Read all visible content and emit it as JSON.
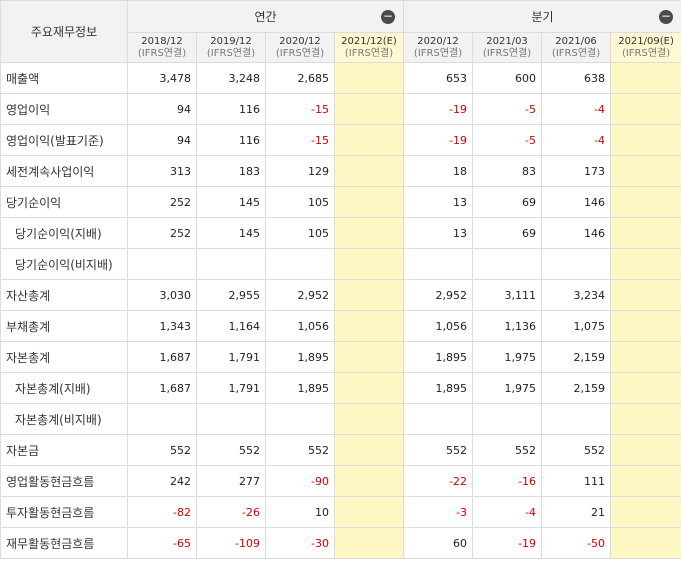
{
  "header": {
    "corner": "주요재무정보",
    "groups": [
      {
        "label": "연간",
        "collapse": "−"
      },
      {
        "label": "분기",
        "collapse": "−"
      }
    ],
    "periods": [
      {
        "period": "2018/12",
        "basis": "(IFRS연결)",
        "estimate": false
      },
      {
        "period": "2019/12",
        "basis": "(IFRS연결)",
        "estimate": false
      },
      {
        "period": "2020/12",
        "basis": "(IFRS연결)",
        "estimate": false
      },
      {
        "period": "2021/12(E)",
        "basis": "(IFRS연결)",
        "estimate": true
      },
      {
        "period": "2020/12",
        "basis": "(IFRS연결)",
        "estimate": false
      },
      {
        "period": "2021/03",
        "basis": "(IFRS연결)",
        "estimate": false
      },
      {
        "period": "2021/06",
        "basis": "(IFRS연결)",
        "estimate": false
      },
      {
        "period": "2021/09(E)",
        "basis": "(IFRS연결)",
        "estimate": true
      }
    ]
  },
  "rows": [
    {
      "label": "매출액",
      "sub": false,
      "values": [
        "3,478",
        "3,248",
        "2,685",
        "",
        "653",
        "600",
        "638",
        ""
      ]
    },
    {
      "label": "영업이익",
      "sub": false,
      "values": [
        "94",
        "116",
        "-15",
        "",
        "-19",
        "-5",
        "-4",
        ""
      ]
    },
    {
      "label": "영업이익(발표기준)",
      "sub": false,
      "values": [
        "94",
        "116",
        "-15",
        "",
        "-19",
        "-5",
        "-4",
        ""
      ]
    },
    {
      "label": "세전계속사업이익",
      "sub": false,
      "values": [
        "313",
        "183",
        "129",
        "",
        "18",
        "83",
        "173",
        ""
      ]
    },
    {
      "label": "당기순이익",
      "sub": false,
      "values": [
        "252",
        "145",
        "105",
        "",
        "13",
        "69",
        "146",
        ""
      ]
    },
    {
      "label": "당기순이익(지배)",
      "sub": true,
      "values": [
        "252",
        "145",
        "105",
        "",
        "13",
        "69",
        "146",
        ""
      ]
    },
    {
      "label": "당기순이익(비지배)",
      "sub": true,
      "values": [
        "",
        "",
        "",
        "",
        "",
        "",
        "",
        ""
      ]
    },
    {
      "label": "자산총계",
      "sub": false,
      "values": [
        "3,030",
        "2,955",
        "2,952",
        "",
        "2,952",
        "3,111",
        "3,234",
        ""
      ]
    },
    {
      "label": "부채총계",
      "sub": false,
      "values": [
        "1,343",
        "1,164",
        "1,056",
        "",
        "1,056",
        "1,136",
        "1,075",
        ""
      ]
    },
    {
      "label": "자본총계",
      "sub": false,
      "values": [
        "1,687",
        "1,791",
        "1,895",
        "",
        "1,895",
        "1,975",
        "2,159",
        ""
      ]
    },
    {
      "label": "자본총계(지배)",
      "sub": true,
      "values": [
        "1,687",
        "1,791",
        "1,895",
        "",
        "1,895",
        "1,975",
        "2,159",
        ""
      ]
    },
    {
      "label": "자본총계(비지배)",
      "sub": true,
      "values": [
        "",
        "",
        "",
        "",
        "",
        "",
        "",
        ""
      ]
    },
    {
      "label": "자본금",
      "sub": false,
      "values": [
        "552",
        "552",
        "552",
        "",
        "552",
        "552",
        "552",
        ""
      ]
    },
    {
      "label": "영업활동현금흐름",
      "sub": false,
      "values": [
        "242",
        "277",
        "-90",
        "",
        "-22",
        "-16",
        "111",
        ""
      ]
    },
    {
      "label": "투자활동현금흐름",
      "sub": false,
      "values": [
        "-82",
        "-26",
        "10",
        "",
        "-3",
        "-4",
        "21",
        ""
      ]
    },
    {
      "label": "재무활동현금흐름",
      "sub": false,
      "values": [
        "-65",
        "-109",
        "-30",
        "",
        "60",
        "-19",
        "-50",
        ""
      ]
    }
  ]
}
